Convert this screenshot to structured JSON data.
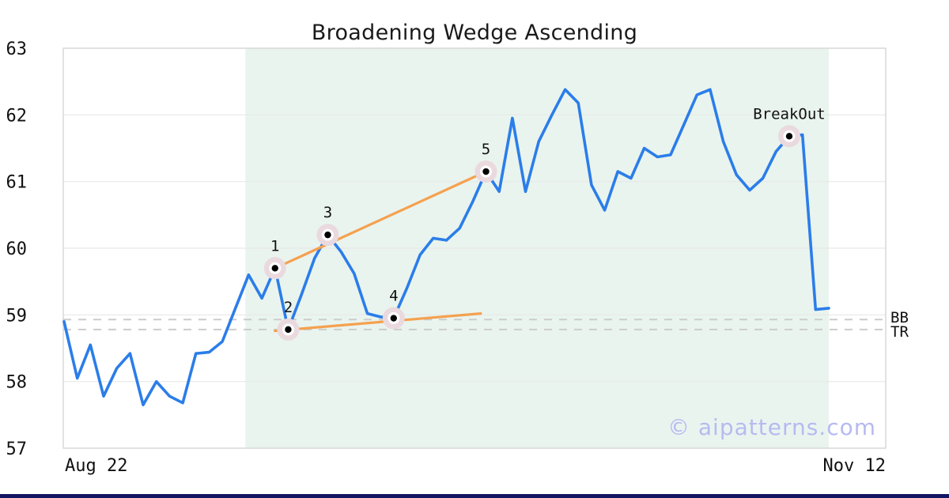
{
  "title": {
    "text": "Broadening Wedge Ascending"
  },
  "watermark": {
    "text": "© aipatterns.com",
    "color": "#b7baf0"
  },
  "brand_bar": {
    "color": "#141464"
  },
  "axes": {
    "y_ticks": [
      63,
      62,
      61,
      60,
      59,
      58,
      57
    ],
    "x_start_label": "Aug 22",
    "x_end_label": "Nov 12"
  },
  "chart_data": {
    "type": "line",
    "title": "Broadening Wedge Ascending",
    "xlabel": "",
    "ylabel": "",
    "ylim": [
      57,
      63
    ],
    "x_first_label": "Aug 22",
    "x_last_label": "Nov 12",
    "grid": "horizontal",
    "values": [
      58.9,
      58.05,
      58.55,
      57.78,
      58.2,
      58.42,
      57.65,
      58.0,
      57.78,
      57.68,
      58.42,
      58.44,
      58.6,
      59.1,
      59.6,
      59.25,
      59.7,
      58.78,
      59.3,
      59.85,
      60.2,
      59.95,
      59.62,
      59.02,
      58.97,
      58.95,
      59.4,
      59.9,
      60.15,
      60.12,
      60.3,
      60.7,
      61.15,
      60.85,
      61.95,
      60.85,
      61.6,
      62.0,
      62.38,
      62.18,
      60.95,
      60.57,
      61.15,
      61.05,
      61.5,
      61.37,
      61.4,
      61.85,
      62.3,
      62.38,
      61.6,
      61.1,
      60.87,
      61.05,
      61.45,
      61.68,
      61.7,
      59.08,
      59.1
    ],
    "markers": [
      {
        "label": "1",
        "index": 16,
        "value": 59.7
      },
      {
        "label": "2",
        "index": 17,
        "value": 58.78
      },
      {
        "label": "3",
        "index": 20,
        "value": 60.2
      },
      {
        "label": "4",
        "index": 25,
        "value": 58.95
      },
      {
        "label": "5",
        "index": 32,
        "value": 61.15
      },
      {
        "label": "BreakOut",
        "index": 55,
        "value": 61.68
      }
    ],
    "trendlines": [
      {
        "name": "upper",
        "from_index": 16,
        "from_value": 59.7,
        "to_index": 32,
        "to_value": 61.15
      },
      {
        "name": "lower",
        "from_index": 16,
        "from_value": 58.76,
        "to_index": 31.6,
        "to_value": 59.02
      }
    ],
    "levels": [
      {
        "label": "BB",
        "value": 58.93
      },
      {
        "label": "TR",
        "value": 58.78
      }
    ],
    "pattern_zone": {
      "from_index": 13.75,
      "to_index": 58
    },
    "colors": {
      "line": "#2b7de9",
      "trend": "#f5a14f",
      "zone": "#e9f4ef",
      "grid": "#e8e8e8",
      "border": "#d8d8d8",
      "dashed": "#cccccc",
      "marker_halo": "#ead9de",
      "marker_dot": "#000000",
      "text": "#111111"
    }
  }
}
